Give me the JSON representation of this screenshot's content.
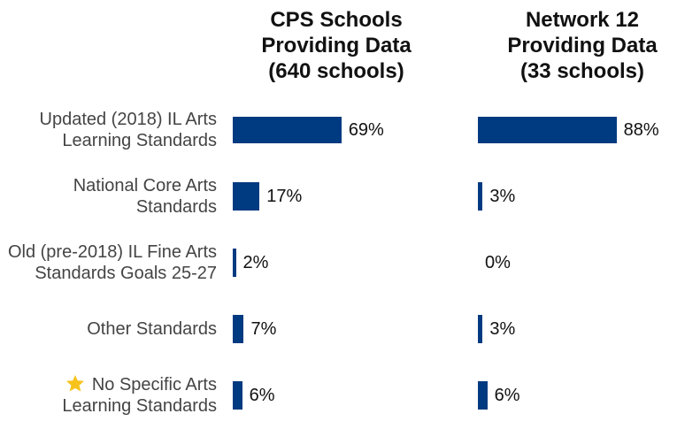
{
  "chart_data": {
    "type": "bar",
    "orientation": "horizontal",
    "color": "#003a80",
    "categories": [
      "Updated (2018) IL Arts Learning Standards",
      "National Core Arts Standards",
      "Old (pre-2018) IL Fine Arts Standards Goals 25-27",
      "Other Standards",
      "No Specific Arts Learning Standards"
    ],
    "series": [
      {
        "name": "CPS Schools Providing Data (640 schools)",
        "values": [
          69,
          17,
          2,
          7,
          6
        ],
        "value_labels": [
          "69%",
          "17%",
          "2%",
          "7%",
          "6%"
        ]
      },
      {
        "name": "Network 12 Providing Data (33 schools)",
        "values": [
          88,
          3,
          0,
          3,
          6
        ],
        "value_labels": [
          "88%",
          "3%",
          "0%",
          "3%",
          "6%"
        ]
      }
    ]
  }
}
